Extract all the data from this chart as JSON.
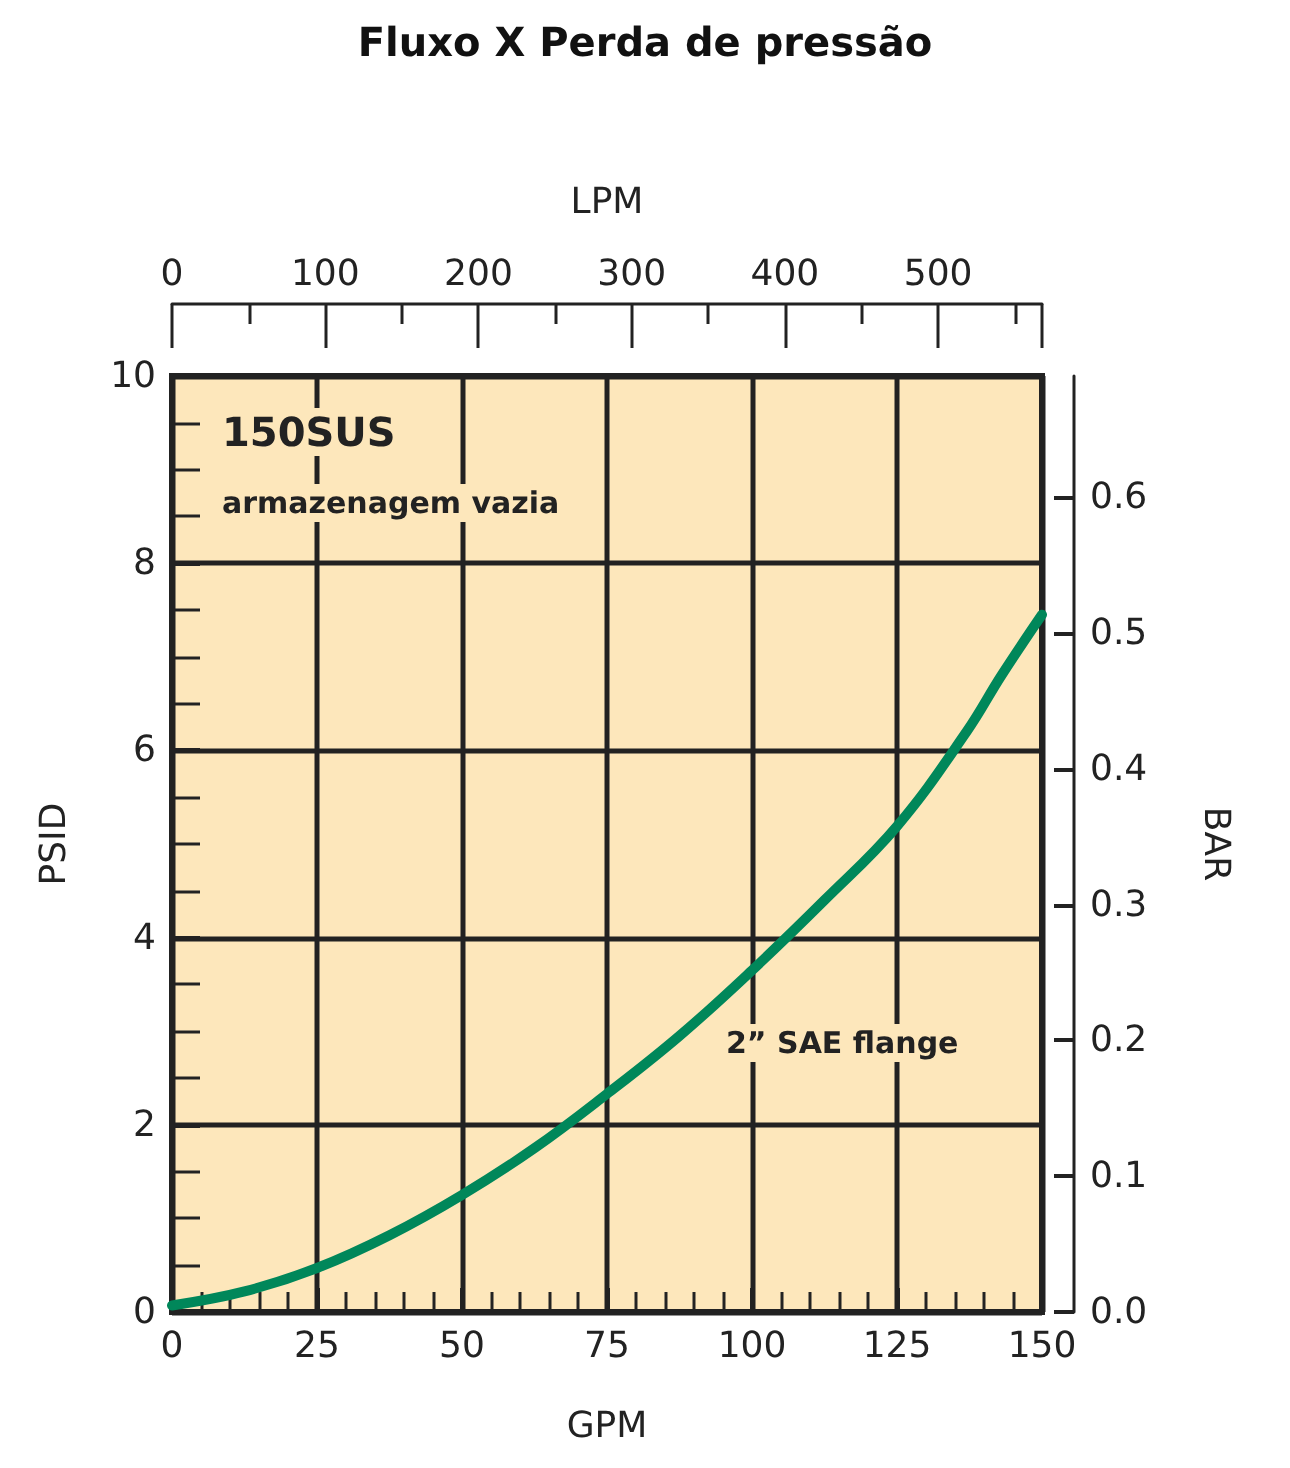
{
  "chart_data": {
    "type": "line",
    "title": "Fluxo X Perda de pressão",
    "xlabel": "GPM",
    "ylabel": "PSID",
    "x2label": "LPM",
    "y2label": "BAR",
    "x": [
      0,
      12.5,
      25,
      37.5,
      50,
      62.5,
      75,
      87.5,
      100,
      112.5,
      125,
      137,
      143,
      150
    ],
    "series": [
      {
        "color": "#00875a",
        "values": [
          0.07,
          0.22,
          0.47,
          0.82,
          1.25,
          1.75,
          2.33,
          2.95,
          3.65,
          4.4,
          5.19,
          6.2,
          6.8,
          7.45
        ]
      }
    ],
    "xlim": [
      0,
      150
    ],
    "xticks": [
      0,
      25,
      50,
      75,
      100,
      125,
      150
    ],
    "ylim": [
      0,
      10
    ],
    "yticks": [
      0,
      2,
      4,
      6,
      8,
      10
    ],
    "x2lim": [
      0,
      567.8
    ],
    "x2ticks": [
      0,
      100,
      200,
      300,
      400,
      500
    ],
    "y2lim": [
      0,
      0.6895
    ],
    "y2ticks": [
      {
        "value": 0,
        "label": "0.0"
      },
      0.1,
      0.2,
      0.3,
      0.4,
      0.5,
      0.6
    ],
    "annotations": [
      "150SUS",
      "armazenagem vazia",
      "2” SAE flange"
    ],
    "grid": true,
    "marker": "none",
    "line_style": "solid"
  }
}
